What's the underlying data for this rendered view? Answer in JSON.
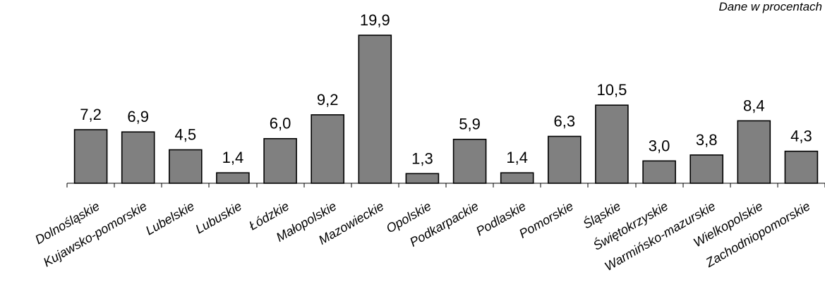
{
  "note": "Dane w procentach",
  "chart_data": {
    "type": "bar",
    "categories": [
      "Dolnośląskie",
      "Kujawsko-pomorskie",
      "Lubelskie",
      "Lubuskie",
      "Łódzkie",
      "Małopolskie",
      "Mazowieckie",
      "Opolskie",
      "Podkarpackie",
      "Podlaskie",
      "Pomorskie",
      "Śląskie",
      "Świętokrzyskie",
      "Warmińsko-mazurskie",
      "Wielkopolskie",
      "Zachodniopomorskie"
    ],
    "values": [
      7.2,
      6.9,
      4.5,
      1.4,
      6.0,
      9.2,
      19.9,
      1.3,
      5.9,
      1.4,
      6.3,
      10.5,
      3.0,
      3.8,
      8.4,
      4.3
    ],
    "value_labels": [
      "7,2",
      "6,9",
      "4,5",
      "1,4",
      "6,0",
      "9,2",
      "19,9",
      "1,3",
      "5,9",
      "1,4",
      "6,3",
      "10,5",
      "3,0",
      "3,8",
      "8,4",
      "4,3"
    ],
    "ylim": [
      0,
      20
    ],
    "bar_color": "#808080",
    "grid": false,
    "legend": "none"
  }
}
